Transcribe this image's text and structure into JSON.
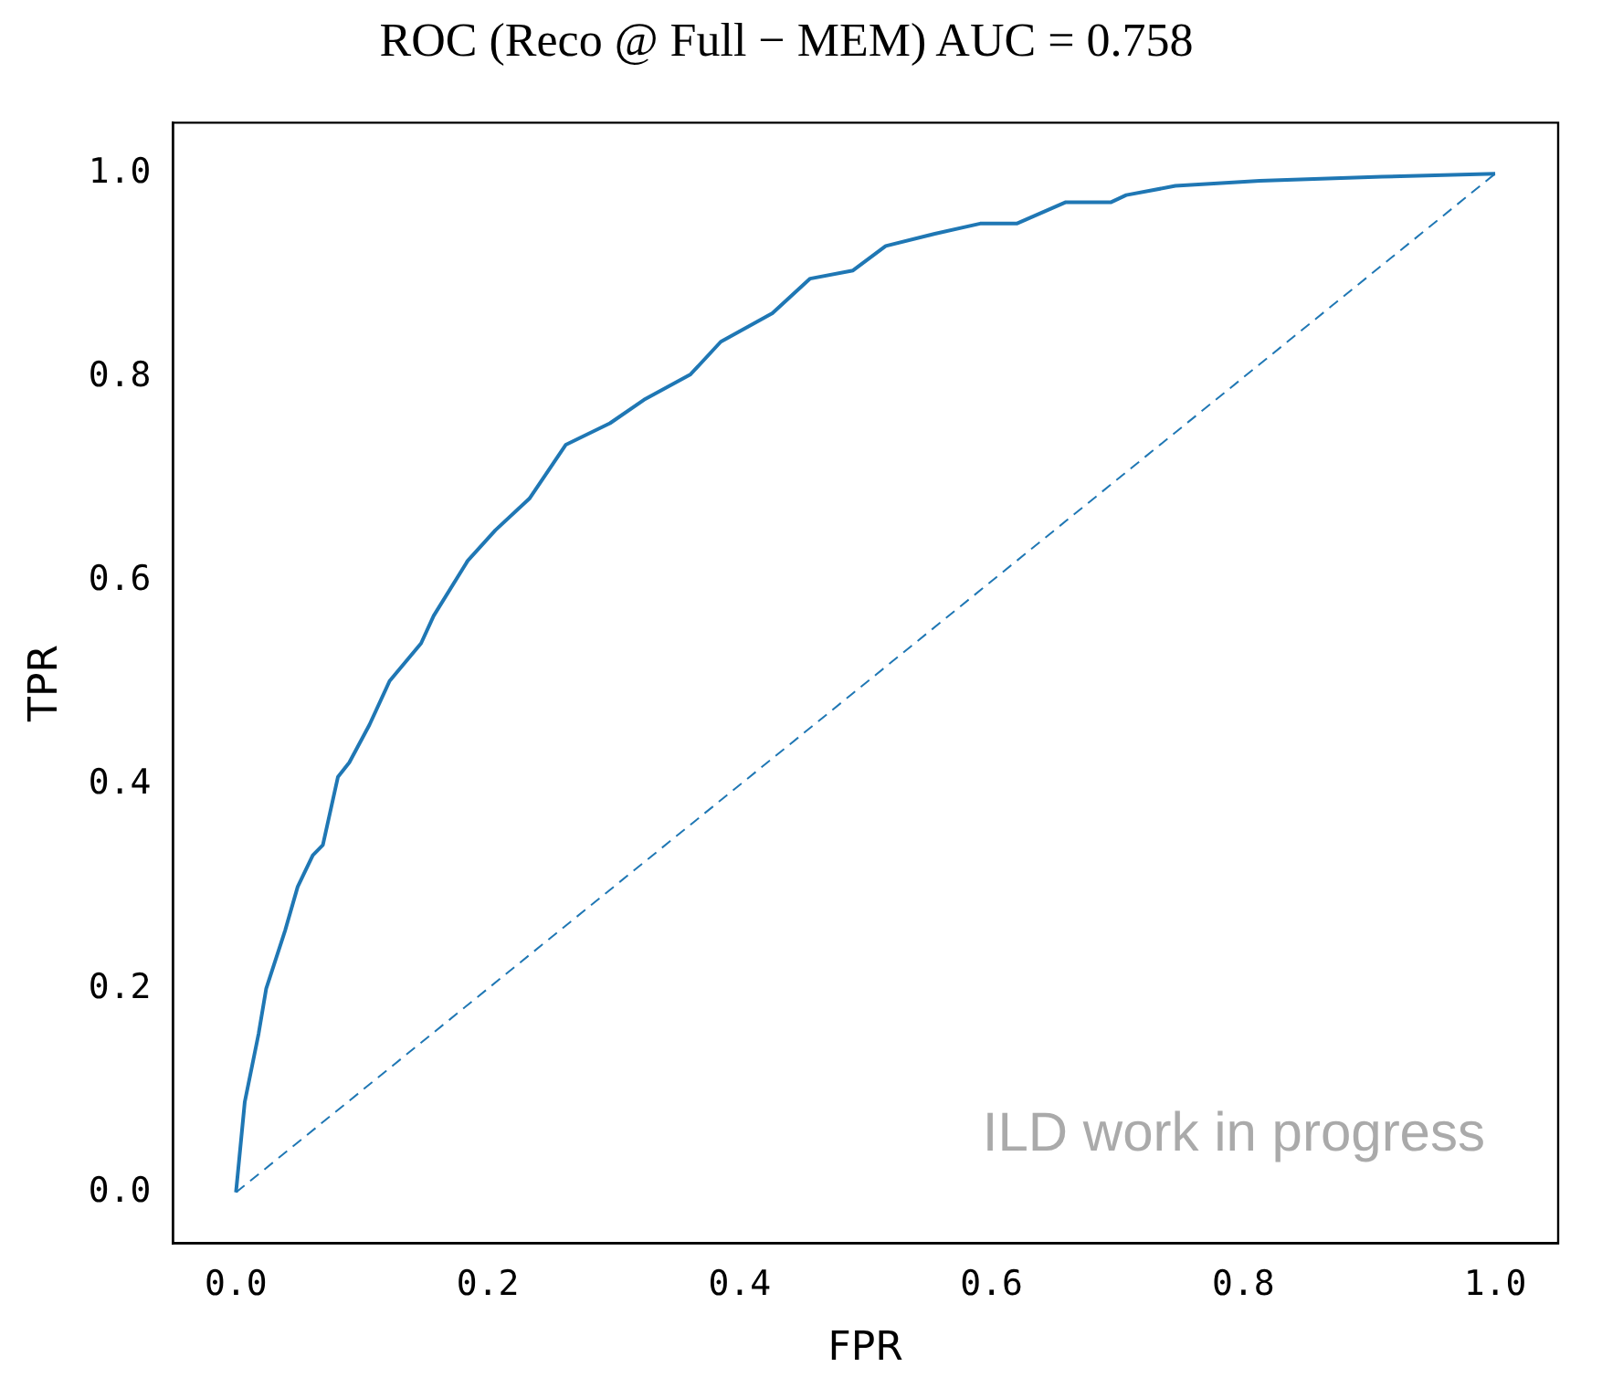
{
  "chart_data": {
    "type": "line",
    "title": "ROC (Reco @ Full − MEM) AUC = 0.758",
    "xlabel": "FPR",
    "ylabel": "TPR",
    "xlim": [
      -0.05,
      1.05
    ],
    "ylim": [
      -0.05,
      1.05
    ],
    "xticks": [
      {
        "value": 0,
        "label": "0.0"
      },
      {
        "value": 0.2,
        "label": "0.2"
      },
      {
        "value": 0.4,
        "label": "0.4"
      },
      {
        "value": 0.6,
        "label": "0.6"
      },
      {
        "value": 0.8,
        "label": "0.8"
      },
      {
        "value": 1,
        "label": "1.0"
      }
    ],
    "yticks": [
      {
        "value": 0,
        "label": "0.0"
      },
      {
        "value": 0.2,
        "label": "0.2"
      },
      {
        "value": 0.4,
        "label": "0.4"
      },
      {
        "value": 0.6,
        "label": "0.6"
      },
      {
        "value": 0.8,
        "label": "0.8"
      },
      {
        "value": 1,
        "label": "1.0"
      }
    ],
    "grid": false,
    "legend": false,
    "marker": "none",
    "line_style": "solid",
    "annotations": [
      "ILD work in progress"
    ],
    "series": [
      {
        "type": "line",
        "color": "#1f77b4",
        "x": [
          0,
          0.007,
          0.018,
          0.024,
          0.039,
          0.049,
          0.061,
          0.069,
          0.081,
          0.09,
          0.106,
          0.122,
          0.147,
          0.157,
          0.184,
          0.206,
          0.233,
          0.262,
          0.297,
          0.324,
          0.361,
          0.385,
          0.426,
          0.456,
          0.49,
          0.516,
          0.555,
          0.591,
          0.62,
          0.659,
          0.695,
          0.707,
          0.746,
          0.813,
          0.91,
          1.0
        ],
        "values": [
          0,
          0.089,
          0.156,
          0.2,
          0.257,
          0.3,
          0.331,
          0.341,
          0.408,
          0.422,
          0.459,
          0.502,
          0.539,
          0.566,
          0.62,
          0.65,
          0.681,
          0.734,
          0.755,
          0.778,
          0.803,
          0.835,
          0.863,
          0.897,
          0.905,
          0.929,
          0.941,
          0.951,
          0.951,
          0.972,
          0.972,
          0.979,
          0.988,
          0.993,
          0.997,
          1.0
        ]
      },
      {
        "type": "line",
        "color": "#1f77b4",
        "line_style": "dashed",
        "x": [
          0,
          1
        ],
        "values": [
          0,
          1
        ]
      }
    ]
  }
}
